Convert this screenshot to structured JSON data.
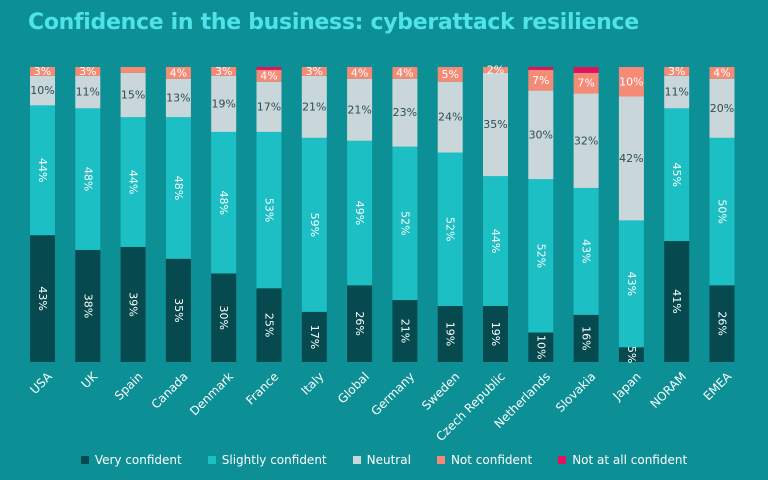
{
  "chart_data": {
    "type": "bar",
    "stacked": true,
    "percent": true,
    "title": "Confidence in the business: cyberattack resilience",
    "categories": [
      "USA",
      "UK",
      "Spain",
      "Canada",
      "Denmark",
      "France",
      "Italy",
      "Global",
      "Germany",
      "Sweden",
      "Czech Republic",
      "Netherlands",
      "Slovakia",
      "Japan",
      "NORAM",
      "EMEA"
    ],
    "series": [
      {
        "name": "Very confident",
        "color": "#064a50",
        "values": [
          43,
          38,
          39,
          35,
          30,
          25,
          17,
          26,
          21,
          19,
          19,
          10,
          16,
          5,
          41,
          26
        ]
      },
      {
        "name": "Slightly confident",
        "color": "#1bbfc4",
        "values": [
          44,
          48,
          44,
          48,
          48,
          53,
          59,
          49,
          52,
          52,
          44,
          52,
          43,
          43,
          45,
          50
        ]
      },
      {
        "name": "Neutral",
        "color": "#cad7da",
        "values": [
          10,
          11,
          15,
          13,
          19,
          17,
          21,
          21,
          23,
          24,
          35,
          30,
          32,
          42,
          11,
          20
        ]
      },
      {
        "name": "Not confident",
        "color": "#f58b76",
        "values": [
          3,
          3,
          2,
          4,
          3,
          4,
          3,
          4,
          4,
          5,
          2,
          7,
          7,
          10,
          3,
          4
        ]
      },
      {
        "name": "Not at all confident",
        "color": "#e0135e",
        "values": [
          0,
          0,
          0,
          0,
          0,
          1,
          0,
          0,
          0,
          0,
          0,
          1,
          2,
          0,
          0,
          0
        ]
      }
    ],
    "data_labels": [
      [
        "43%",
        "38%",
        "39%",
        "35%",
        "30%",
        "25%",
        "17%",
        "26%",
        "21%",
        "19%",
        "19%",
        "10%",
        "16%",
        "5%",
        "41%",
        "26%"
      ],
      [
        "44%",
        "48%",
        "44%",
        "48%",
        "48%",
        "53%",
        "59%",
        "49%",
        "52%",
        "52%",
        "44%",
        "52%",
        "43%",
        "43%",
        "45%",
        "50%"
      ],
      [
        "10%",
        "11%",
        "15%",
        "13%",
        "19%",
        "17%",
        "21%",
        "21%",
        "23%",
        "24%",
        "35%",
        "30%",
        "32%",
        "42%",
        "11%",
        "20%"
      ],
      [
        "3%",
        "3%",
        "",
        "4%",
        "3%",
        "4%",
        "3%",
        "4%",
        "4%",
        "5%",
        "2%",
        "7%",
        "7%",
        "10%",
        "3%",
        "4%"
      ],
      [
        "",
        "",
        "",
        "",
        "",
        "",
        "",
        "",
        "",
        "",
        "",
        "",
        "",
        "",
        "",
        ""
      ]
    ],
    "ylim": [
      0,
      100
    ],
    "grid": false,
    "legend_position": "bottom"
  }
}
